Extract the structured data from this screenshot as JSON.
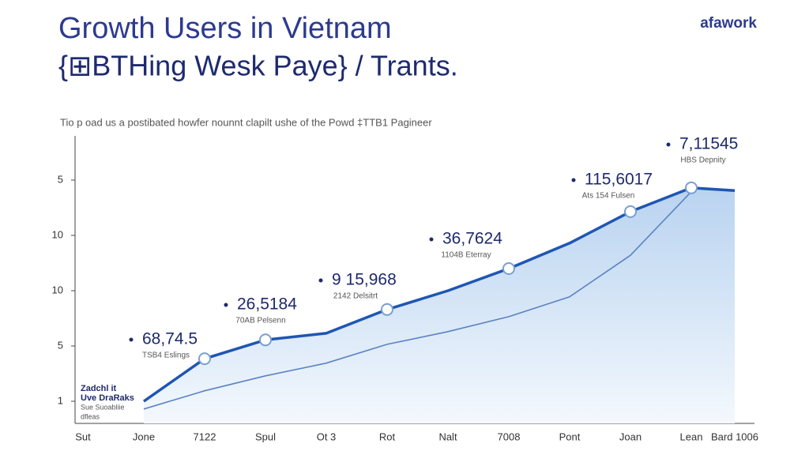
{
  "chart_data": {
    "type": "line",
    "title": "Growth Users in Vietnam",
    "subtitle": "{⊞BTHing Wesk Paye} / Trants.",
    "brand": "afawork",
    "note": "Tio p oad us a postibated howfer nounnt clapilt ushe of the Powd ‡TTB1 Pagineer",
    "legend_text": [
      "Zadchl it",
      "Uve DraRaks",
      "Sue Suoabliie",
      "dfleas"
    ],
    "categories": [
      "Sut",
      "Jone",
      "7122",
      "Spul",
      "Ot 3",
      "Rot",
      "Nalt",
      "7008",
      "Pont",
      "Joan",
      "Lean",
      "Bard 1006"
    ],
    "ylim": [
      -0.4,
      4.8
    ],
    "yticks": [
      {
        "value": 4,
        "label": "5"
      },
      {
        "value": 3,
        "label": "10"
      },
      {
        "value": 2,
        "label": "10"
      },
      {
        "value": 1,
        "label": "5"
      },
      {
        "value": 0,
        "label": "1"
      }
    ],
    "series": [
      {
        "color": "#1f56b3",
        "values": [
          null,
          0.0,
          0.77,
          1.11,
          1.23,
          1.66,
          2.0,
          2.4,
          2.86,
          3.43,
          3.86,
          3.81
        ]
      },
      {
        "color": "#5b83c2",
        "values": [
          null,
          -0.14,
          0.19,
          0.46,
          0.69,
          1.03,
          1.26,
          1.53,
          1.89,
          2.64,
          3.79,
          null
        ]
      }
    ],
    "annotations": [
      {
        "text": "68,74.5",
        "sub": "TSB4 Eslings"
      },
      {
        "text": "26,5184",
        "sub": "70AB Pelsenn"
      },
      {
        "text": "9 15,968",
        "sub": "2142 Delsitrt"
      },
      {
        "text": "36,7624",
        "sub": "1104B Eterray"
      },
      {
        "text": "115,6017",
        "sub": "Ats 154 Fulsen"
      },
      {
        "text": "7,11545",
        "sub": "HBS Depnity"
      }
    ]
  }
}
